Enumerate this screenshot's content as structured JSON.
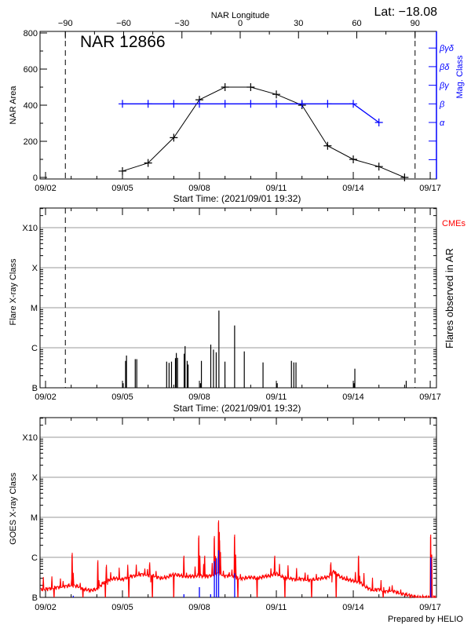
{
  "colors": {
    "axis": "#000000",
    "mag_class": "#0000ff",
    "goes_long": "#ff0000",
    "goes_short": "#0000ff",
    "grid": "#999999",
    "cme": "#ff0000"
  },
  "footer": "Prepared by HELIO",
  "chart_data": [
    {
      "type": "line",
      "title": "NAR 12866",
      "latitude_label": "Lat: −18.08",
      "top_xlabel": "NAR Longitude",
      "top_xticks": [
        "−90",
        "−60",
        "−30",
        "0",
        "30",
        "60",
        "90"
      ],
      "top_xtick_values": [
        -90,
        -60,
        -30,
        0,
        30,
        60,
        90
      ],
      "limb_markers_longitude": [
        -90,
        90
      ],
      "xlabel": "Start Time: (2021/09/01 19:32)",
      "xticks": [
        "09/02",
        "09/05",
        "09/08",
        "09/11",
        "09/14",
        "09/17"
      ],
      "ylabel": "NAR Area",
      "ylim": [
        0,
        800
      ],
      "yticks": [
        "0",
        "200",
        "400",
        "600",
        "800"
      ],
      "y2label": "Mag. Class",
      "y2ticks": [
        "α",
        "β",
        "βγ",
        "βδ",
        "βγδ"
      ],
      "series": [
        {
          "color": "#000000",
          "axis": "left",
          "x": [
            "09/05",
            "09/06",
            "09/07",
            "09/08",
            "09/09",
            "09/10",
            "09/11",
            "09/12",
            "09/13",
            "09/14",
            "09/15",
            "09/16"
          ],
          "values": [
            35,
            80,
            220,
            430,
            500,
            500,
            460,
            400,
            175,
            100,
            60,
            0
          ]
        },
        {
          "color": "#0000ff",
          "axis": "right",
          "x": [
            "09/05",
            "09/06",
            "09/07",
            "09/08",
            "09/09",
            "09/10",
            "09/11",
            "09/12",
            "09/13",
            "09/14",
            "09/15"
          ],
          "values": [
            "β",
            "β",
            "β",
            "β",
            "β",
            "β",
            "β",
            "β",
            "β",
            "β",
            "α"
          ]
        }
      ]
    },
    {
      "type": "bar",
      "xlabel": "Start Time: (2021/09/01 19:32)",
      "xticks": [
        "09/02",
        "09/05",
        "09/08",
        "09/11",
        "09/14",
        "09/17"
      ],
      "ylabel": "Flare X-ray Class",
      "yticks": [
        "B",
        "C",
        "M",
        "X",
        "X10"
      ],
      "y_scale": "log",
      "grid": true,
      "y2label": "Flares observed in AR",
      "legend": "CMEs",
      "limb_markers_longitude": [
        -90,
        90
      ],
      "flares": [
        {
          "time": "09/05 00:39",
          "class": "B1.3"
        },
        {
          "time": "09/05 02:54",
          "class": "B4.7"
        },
        {
          "time": "09/05 03:46",
          "class": "B6.4"
        },
        {
          "time": "09/05 11:57",
          "class": "B5.2"
        },
        {
          "time": "09/05 13:22",
          "class": "B5.2"
        },
        {
          "time": "09/06 17:21",
          "class": "B4.5"
        },
        {
          "time": "09/06 19:37",
          "class": "B4.2"
        },
        {
          "time": "09/06 21:53",
          "class": "B4.5"
        },
        {
          "time": "09/07 01:34",
          "class": "B5.5"
        },
        {
          "time": "09/07 02:24",
          "class": "B7.4"
        },
        {
          "time": "09/07 03:32",
          "class": "B5.6"
        },
        {
          "time": "09/07 09:45",
          "class": "B7.1"
        },
        {
          "time": "09/07 10:36",
          "class": "C1.1"
        },
        {
          "time": "09/07 12:35",
          "class": "B4.7"
        },
        {
          "time": "09/07 13:25",
          "class": "B3.8"
        },
        {
          "time": "09/08 01:00",
          "class": "B1.3"
        },
        {
          "time": "09/08 01:52",
          "class": "B4.7"
        },
        {
          "time": "09/08 10:38",
          "class": "C1.2"
        },
        {
          "time": "09/08 13:10",
          "class": "B9.0"
        },
        {
          "time": "09/08 15:43",
          "class": "B7.7"
        },
        {
          "time": "09/08 18:15",
          "class": "C8.5"
        },
        {
          "time": "09/08 23:54",
          "class": "B4.5"
        },
        {
          "time": "09/09 08:57",
          "class": "C3.6"
        },
        {
          "time": "09/09 18:00",
          "class": "B8.1"
        },
        {
          "time": "09/10 11:32",
          "class": "B4.3"
        },
        {
          "time": "09/11 00:49",
          "class": "B1.3"
        },
        {
          "time": "09/11 14:07",
          "class": "B4.7"
        },
        {
          "time": "09/11 16:22",
          "class": "B4.3"
        },
        {
          "time": "09/11 18:22",
          "class": "B4.3"
        },
        {
          "time": "09/14 00:37",
          "class": "B1.3"
        },
        {
          "time": "09/14 01:28",
          "class": "B3.0"
        },
        {
          "time": "09/16 01:32",
          "class": "B1.5"
        }
      ]
    },
    {
      "type": "line",
      "xlabel": "",
      "xticks": [
        "09/02",
        "09/05",
        "09/08",
        "09/11",
        "09/14",
        "09/17"
      ],
      "ylabel": "GOES X-ray Class",
      "yticks": [
        "B",
        "C",
        "M",
        "X",
        "X10"
      ],
      "y_scale": "log",
      "grid": true,
      "series": [
        {
          "name": "",
          "color": "#ff0000",
          "start": "09/02 00:00",
          "step_hours": 6,
          "values": [
            "B1.6",
            "B1.7",
            "B1.8",
            "B1.9",
            "B2.0",
            "B1.9",
            "B1.6",
            "B1.5",
            "B1.6",
            "B2.3",
            "B2.8",
            "B3.0",
            "B2.8",
            "B3.3",
            "B3.5",
            "B3.8",
            "B3.6",
            "B3.4",
            "B3.0",
            "B3.2",
            "B3.8",
            "B3.5",
            "B3.3",
            "B3.4",
            "B3.5",
            "B3.3",
            "B3.6",
            "B4.0",
            "B3.4",
            "B3.6",
            "B3.0",
            "B3.0",
            "B3.2",
            "B3.0",
            "B3.3",
            "B3.5",
            "B4.0",
            "B3.2",
            "B3.0",
            "B2.8",
            "B2.9",
            "B2.7",
            "B2.8",
            "B3.0",
            "B3.2",
            "B4.5",
            "B3.2",
            "B2.8",
            "B2.6",
            "B2.4",
            "B1.8",
            "B1.5",
            "B1.6",
            "B1.4",
            "B1.5",
            "B1.3",
            "B1.2",
            "B1.1",
            "B1.0",
            "B1.0",
            "B1.0"
          ],
          "peaks": [
            {
              "time": "09/03 01:00",
              "class": "C1.3"
            },
            {
              "time": "09/04 01:00",
              "class": "B8.5"
            },
            {
              "time": "09/04 09:00",
              "class": "B6.5"
            },
            {
              "time": "09/06 01:30",
              "class": "B7.5"
            },
            {
              "time": "09/07 09:30",
              "class": "C1.1"
            },
            {
              "time": "09/07 23:30",
              "class": "C3.5"
            },
            {
              "time": "09/08 05:00",
              "class": "C1.1"
            },
            {
              "time": "09/08 14:00",
              "class": "C3.4"
            },
            {
              "time": "09/08 18:00",
              "class": "C8.4"
            },
            {
              "time": "09/08 18:45",
              "class": "C4.3"
            },
            {
              "time": "09/09 09:00",
              "class": "C3.7"
            },
            {
              "time": "09/10 22:30",
              "class": "C1.1"
            },
            {
              "time": "09/13 03:00",
              "class": "B7.5"
            },
            {
              "time": "09/14 05:00",
              "class": "C1.1"
            },
            {
              "time": "09/17 00:30",
              "class": "C3.7"
            }
          ],
          "dropouts": [
            "09/02 08:00",
            "09/03 11:00",
            "09/04 08:00",
            "09/05 06:00",
            "09/06 04:00",
            "09/07 00:00",
            "09/09 12:00",
            "09/10 06:00",
            "09/11 08:00",
            "09/12 09:00",
            "09/13 08:00",
            "09/15 04:00"
          ]
        },
        {
          "name": "",
          "color": "#0000ff",
          "spikes": [
            {
              "time": "09/03 02:00",
              "class": "B1.1"
            },
            {
              "time": "09/07 09:30",
              "class": "B1.2"
            },
            {
              "time": "09/08 00:00",
              "class": "B1.8"
            },
            {
              "time": "09/08 10:30",
              "class": "B1.2"
            },
            {
              "time": "09/08 14:00",
              "class": "B8.0"
            },
            {
              "time": "09/08 16:00",
              "class": "B9.5"
            },
            {
              "time": "09/08 18:00",
              "class": "C1.5"
            },
            {
              "time": "09/09 09:00",
              "class": "B4.0"
            },
            {
              "time": "09/17 00:30",
              "class": "C1.0"
            }
          ]
        }
      ]
    }
  ]
}
